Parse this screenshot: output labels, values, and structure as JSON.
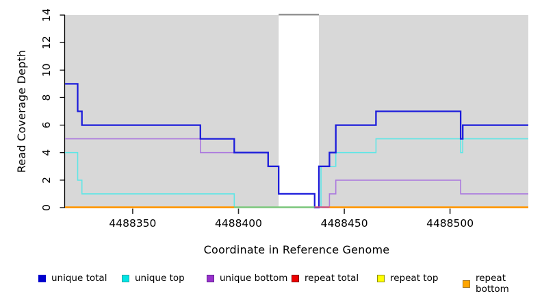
{
  "chart_data": {
    "type": "line",
    "step": true,
    "title": "",
    "xlabel": "Coordinate in Reference Genome",
    "ylabel": "Read Coverage Depth",
    "xlim": [
      4488318,
      4488537
    ],
    "ylim": [
      0,
      14
    ],
    "grid": false,
    "legend_position": "bottom",
    "x_ticks": [
      4488350,
      4488400,
      4488450,
      4488500
    ],
    "x_tick_labels": [
      "4488350",
      "4488400",
      "4488450",
      "4488500"
    ],
    "y_ticks": [
      0,
      2,
      4,
      6,
      8,
      10,
      12,
      14
    ],
    "y_tick_labels": [
      "0",
      "2",
      "4",
      "6",
      "8",
      "10",
      "12",
      "14"
    ],
    "plot_background": "#ffffff",
    "shaded_regions": [
      {
        "from": 4488318,
        "to": 4488419,
        "color": "#d8d8d8"
      },
      {
        "from": 4488438,
        "to": 4488537,
        "color": "#d8d8d8"
      }
    ],
    "gap_region": {
      "from": 4488419,
      "to": 4488438,
      "top_line_color": "#8f8f8f"
    },
    "series": [
      {
        "name": "unique total",
        "color": "#1c1cdb",
        "width": 2.3,
        "points": [
          [
            4488318,
            9
          ],
          [
            4488324,
            7
          ],
          [
            4488326,
            6
          ],
          [
            4488382,
            5
          ],
          [
            4488398,
            4
          ],
          [
            4488414,
            3
          ],
          [
            4488419,
            1
          ],
          [
            4488436,
            0
          ],
          [
            4488438,
            3
          ],
          [
            4488443,
            4
          ],
          [
            4488446,
            6
          ],
          [
            4488465,
            7
          ],
          [
            4488505,
            5
          ],
          [
            4488506,
            6
          ],
          [
            4488537,
            6
          ]
        ]
      },
      {
        "name": "unique top",
        "color": "#5fe6e6",
        "width": 1.6,
        "points": [
          [
            4488318,
            4
          ],
          [
            4488324,
            2
          ],
          [
            4488326,
            1
          ],
          [
            4488398,
            0
          ],
          [
            4488439,
            3
          ],
          [
            4488446,
            4
          ],
          [
            4488465,
            5
          ],
          [
            4488505,
            4
          ],
          [
            4488506,
            5
          ],
          [
            4488537,
            5
          ]
        ]
      },
      {
        "name": "unique bottom",
        "color": "#ab79de",
        "width": 1.6,
        "points": [
          [
            4488318,
            5
          ],
          [
            4488382,
            4
          ],
          [
            4488414,
            3
          ],
          [
            4488419,
            1
          ],
          [
            4488436,
            0
          ],
          [
            4488443,
            1
          ],
          [
            4488446,
            2
          ],
          [
            4488505,
            1
          ],
          [
            4488537,
            1
          ]
        ]
      },
      {
        "name": "repeat total",
        "color": "#dd0000",
        "width": 1.6,
        "points": [
          [
            4488318,
            0
          ],
          [
            4488537,
            0
          ]
        ]
      },
      {
        "name": "repeat top",
        "color": "#ffff00",
        "width": 1.6,
        "points": [
          [
            4488318,
            0
          ],
          [
            4488537,
            0
          ]
        ]
      },
      {
        "name": "repeat bottom",
        "color": "#ff9800",
        "width": 2,
        "points": [
          [
            4488318,
            0
          ],
          [
            4488537,
            0
          ]
        ]
      }
    ],
    "zero_line_segments": [
      {
        "from": 4488318,
        "to": 4488398,
        "color": "#ff9800"
      },
      {
        "from": 4488398,
        "to": 4488436,
        "color": "#7fc97f"
      },
      {
        "from": 4488436,
        "to": 4488443,
        "color": "#d3517d"
      },
      {
        "from": 4488443,
        "to": 4488537,
        "color": "#ff9800"
      }
    ]
  },
  "axes": {
    "x_label": "Coordinate in Reference Genome",
    "y_label": "Read Coverage Depth"
  },
  "legend": {
    "items": [
      {
        "label": "unique total",
        "fill": "#0000cd",
        "border": "#0000cd"
      },
      {
        "label": "unique top",
        "fill": "#00e5e5",
        "border": "#2f9e9e"
      },
      {
        "label": "unique bottom",
        "fill": "#9932cc",
        "border": "#5e1f8f"
      },
      {
        "label": "repeat total",
        "fill": "#ee0000",
        "border": "#7a0000"
      },
      {
        "label": "repeat top",
        "fill": "#ffff00",
        "border": "#8f8f00"
      },
      {
        "label": "repeat bottom",
        "fill": "#ffa500",
        "border": "#a8741a"
      }
    ]
  }
}
